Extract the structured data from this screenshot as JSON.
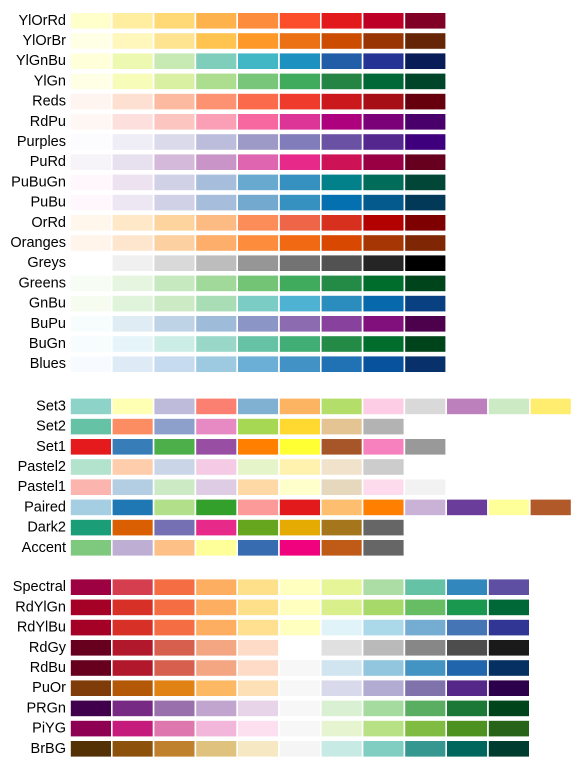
{
  "groups": [
    {
      "type": "sequential",
      "palettes": [
        {
          "name": "YlOrRd",
          "colors": [
            "#FFFFCC",
            "#FFEDA0",
            "#FED976",
            "#FEB24C",
            "#FD8D3C",
            "#FC4E2A",
            "#E31A1C",
            "#BD0026",
            "#800026"
          ]
        },
        {
          "name": "YlOrBr",
          "colors": [
            "#FFFFE5",
            "#FFF7BC",
            "#FEE391",
            "#FEC44F",
            "#FE9929",
            "#EC7014",
            "#CC4C02",
            "#993404",
            "#662506"
          ]
        },
        {
          "name": "YlGnBu",
          "colors": [
            "#FFFFD9",
            "#EDF8B1",
            "#C7E9B4",
            "#7FCDBB",
            "#41B6C4",
            "#1D91C0",
            "#225EA8",
            "#253494",
            "#081D58"
          ]
        },
        {
          "name": "YlGn",
          "colors": [
            "#FFFFE5",
            "#F7FCB9",
            "#D9F0A3",
            "#ADDD8E",
            "#78C679",
            "#41AB5D",
            "#238443",
            "#006837",
            "#004529"
          ]
        },
        {
          "name": "Reds",
          "colors": [
            "#FFF5F0",
            "#FEE0D2",
            "#FCBBA1",
            "#FC9272",
            "#FB6A4A",
            "#EF3B2C",
            "#CB181D",
            "#A50F15",
            "#67000D"
          ]
        },
        {
          "name": "RdPu",
          "colors": [
            "#FFF7F3",
            "#FDE0DD",
            "#FCC5C0",
            "#FA9FB5",
            "#F768A1",
            "#DD3497",
            "#AE017E",
            "#7A0177",
            "#49006A"
          ]
        },
        {
          "name": "Purples",
          "colors": [
            "#FCFBFD",
            "#EFEDF5",
            "#DADAEB",
            "#BCBDDC",
            "#9E9AC8",
            "#807DBA",
            "#6A51A3",
            "#54278F",
            "#3F007D"
          ]
        },
        {
          "name": "PuRd",
          "colors": [
            "#F7F4F9",
            "#E7E1EF",
            "#D4B9DA",
            "#C994C7",
            "#DF65B0",
            "#E7298A",
            "#CE1256",
            "#980043",
            "#67001F"
          ]
        },
        {
          "name": "PuBuGn",
          "colors": [
            "#FFF7FB",
            "#ECE2F0",
            "#D0D1E6",
            "#A6BDDB",
            "#67A9CF",
            "#3690C0",
            "#02818A",
            "#016C59",
            "#014636"
          ]
        },
        {
          "name": "PuBu",
          "colors": [
            "#FFF7FB",
            "#ECE7F2",
            "#D0D1E6",
            "#A6BDDB",
            "#74A9CF",
            "#3690C0",
            "#0570B0",
            "#045A8D",
            "#023858"
          ]
        },
        {
          "name": "OrRd",
          "colors": [
            "#FFF7EC",
            "#FEE8C8",
            "#FDD49E",
            "#FDBB84",
            "#FC8D59",
            "#EF6548",
            "#D7301F",
            "#B30000",
            "#7F0000"
          ]
        },
        {
          "name": "Oranges",
          "colors": [
            "#FFF5EB",
            "#FEE6CE",
            "#FDD0A2",
            "#FDAE6B",
            "#FD8D3C",
            "#F16913",
            "#D94801",
            "#A63603",
            "#7F2704"
          ]
        },
        {
          "name": "Greys",
          "colors": [
            "#FFFFFF",
            "#F0F0F0",
            "#D9D9D9",
            "#BDBDBD",
            "#969696",
            "#737373",
            "#525252",
            "#252525",
            "#000000"
          ]
        },
        {
          "name": "Greens",
          "colors": [
            "#F7FCF5",
            "#E5F5E0",
            "#C7E9C0",
            "#A1D99B",
            "#74C476",
            "#41AB5D",
            "#238B45",
            "#006D2C",
            "#00441B"
          ]
        },
        {
          "name": "GnBu",
          "colors": [
            "#F7FCF0",
            "#E0F3DB",
            "#CCEBC5",
            "#A8DDB5",
            "#7BCCC4",
            "#4EB3D3",
            "#2B8CBE",
            "#0868AC",
            "#084081"
          ]
        },
        {
          "name": "BuPu",
          "colors": [
            "#F7FCFD",
            "#E0ECF4",
            "#BFD3E6",
            "#9EBCDA",
            "#8C96C6",
            "#8C6BB1",
            "#88419D",
            "#810F7C",
            "#4D004B"
          ]
        },
        {
          "name": "BuGn",
          "colors": [
            "#F7FCFD",
            "#E5F5F9",
            "#CCECE6",
            "#99D8C9",
            "#66C2A4",
            "#41AE76",
            "#238B45",
            "#006D2C",
            "#00441B"
          ]
        },
        {
          "name": "Blues",
          "colors": [
            "#F7FBFF",
            "#DEEBF7",
            "#C6DBEF",
            "#9ECAE1",
            "#6BAED6",
            "#4292C6",
            "#2171B5",
            "#08519C",
            "#08306B"
          ]
        }
      ]
    },
    {
      "type": "qualitative",
      "palettes": [
        {
          "name": "Set3",
          "colors": [
            "#8DD3C7",
            "#FFFFB3",
            "#BEBADA",
            "#FB8072",
            "#80B1D3",
            "#FDB462",
            "#B3DE69",
            "#FCCDE5",
            "#D9D9D9",
            "#BC80BD",
            "#CCEBC5",
            "#FFED6F"
          ]
        },
        {
          "name": "Set2",
          "colors": [
            "#66C2A5",
            "#FC8D62",
            "#8DA0CB",
            "#E78AC3",
            "#A6D854",
            "#FFD92F",
            "#E5C494",
            "#B3B3B3"
          ]
        },
        {
          "name": "Set1",
          "colors": [
            "#E41A1C",
            "#377EB8",
            "#4DAF4A",
            "#984EA3",
            "#FF7F00",
            "#FFFF33",
            "#A65628",
            "#F781BF",
            "#999999"
          ]
        },
        {
          "name": "Pastel2",
          "colors": [
            "#B3E2CD",
            "#FDCDAC",
            "#CBD5E8",
            "#F4CAE4",
            "#E6F5C9",
            "#FFF2AE",
            "#F1E2CC",
            "#CCCCCC"
          ]
        },
        {
          "name": "Pastel1",
          "colors": [
            "#FBB4AE",
            "#B3CDE3",
            "#CCEBC5",
            "#DECBE4",
            "#FED9A6",
            "#FFFFCC",
            "#E5D8BD",
            "#FDDAEC",
            "#F2F2F2"
          ]
        },
        {
          "name": "Paired",
          "colors": [
            "#A6CEE3",
            "#1F78B4",
            "#B2DF8A",
            "#33A02C",
            "#FB9A99",
            "#E31A1C",
            "#FDBF6F",
            "#FF7F00",
            "#CAB2D6",
            "#6A3D9A",
            "#FFFF99",
            "#B15928"
          ]
        },
        {
          "name": "Dark2",
          "colors": [
            "#1B9E77",
            "#D95F02",
            "#7570B3",
            "#E7298A",
            "#66A61E",
            "#E6AB02",
            "#A6761D",
            "#666666"
          ]
        },
        {
          "name": "Accent",
          "colors": [
            "#7FC97F",
            "#BEAED4",
            "#FDC086",
            "#FFFF99",
            "#386CB0",
            "#F0027F",
            "#BF5B17",
            "#666666"
          ]
        }
      ]
    },
    {
      "type": "diverging",
      "palettes": [
        {
          "name": "Spectral",
          "colors": [
            "#9E0142",
            "#D53E4F",
            "#F46D43",
            "#FDAE61",
            "#FEE08B",
            "#FFFFBF",
            "#E6F598",
            "#ABDDA4",
            "#66C2A5",
            "#3288BD",
            "#5E4FA2"
          ]
        },
        {
          "name": "RdYlGn",
          "colors": [
            "#A50026",
            "#D73027",
            "#F46D43",
            "#FDAE61",
            "#FEE08B",
            "#FFFFBF",
            "#D9EF8B",
            "#A6D96A",
            "#66BD63",
            "#1A9850",
            "#006837"
          ]
        },
        {
          "name": "RdYlBu",
          "colors": [
            "#A50026",
            "#D73027",
            "#F46D43",
            "#FDAE61",
            "#FEE090",
            "#FFFFBF",
            "#E0F3F8",
            "#ABD9E9",
            "#74ADD1",
            "#4575B4",
            "#313695"
          ]
        },
        {
          "name": "RdGy",
          "colors": [
            "#67001F",
            "#B2182B",
            "#D6604D",
            "#F4A582",
            "#FDDBC7",
            "#FFFFFF",
            "#E0E0E0",
            "#BABABA",
            "#878787",
            "#4D4D4D",
            "#1A1A1A"
          ]
        },
        {
          "name": "RdBu",
          "colors": [
            "#67001F",
            "#B2182B",
            "#D6604D",
            "#F4A582",
            "#FDDBC7",
            "#F7F7F7",
            "#D1E5F0",
            "#92C5DE",
            "#4393C3",
            "#2166AC",
            "#053061"
          ]
        },
        {
          "name": "PuOr",
          "colors": [
            "#7F3B08",
            "#B35806",
            "#E08214",
            "#FDB863",
            "#FEE0B6",
            "#F7F7F7",
            "#D8DAEB",
            "#B2ABD2",
            "#8073AC",
            "#542788",
            "#2D004B"
          ]
        },
        {
          "name": "PRGn",
          "colors": [
            "#40004B",
            "#762A83",
            "#9970AB",
            "#C2A5CF",
            "#E7D4E8",
            "#F7F7F7",
            "#D9F0D3",
            "#A6DBA0",
            "#5AAE61",
            "#1B7837",
            "#00441B"
          ]
        },
        {
          "name": "PiYG",
          "colors": [
            "#8E0152",
            "#C51B7D",
            "#DE77AE",
            "#F1B6DA",
            "#FDE0EF",
            "#F7F7F7",
            "#E6F5D0",
            "#B8E186",
            "#7FBC41",
            "#4D9221",
            "#276419"
          ]
        },
        {
          "name": "BrBG",
          "colors": [
            "#543005",
            "#8C510A",
            "#BF812D",
            "#DFC27D",
            "#F6E8C3",
            "#F5F5F5",
            "#C7EAE5",
            "#80CDC1",
            "#35978F",
            "#01665E",
            "#003C30"
          ]
        }
      ]
    }
  ]
}
